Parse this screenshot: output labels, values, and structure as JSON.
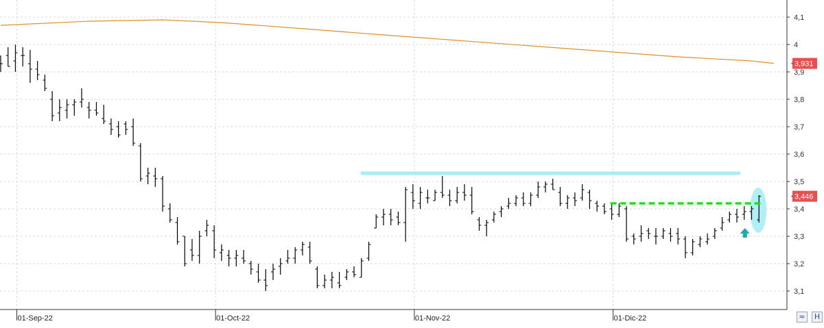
{
  "chart_data": {
    "type": "ohlc",
    "y_ticks": [
      "4,1",
      "4",
      "3,9",
      "3,8",
      "3,7",
      "3,6",
      "3,5",
      "3,4",
      "3,3",
      "3,2",
      "3,1"
    ],
    "y_tick_values": [
      4.1,
      4.0,
      3.9,
      3.8,
      3.7,
      3.6,
      3.5,
      3.4,
      3.3,
      3.2,
      3.1
    ],
    "ylim": [
      3.04,
      4.15
    ],
    "x_ticks": [
      "01-Sep-22",
      "01-Oct-22",
      "01-Nov-22",
      "01-Dic-22"
    ],
    "x_tick_bar_index": [
      2,
      29,
      56,
      83
    ],
    "bars": [
      [
        3.93,
        3.96,
        3.9,
        3.93
      ],
      [
        3.96,
        3.99,
        3.92,
        3.92
      ],
      [
        3.94,
        4.0,
        3.9,
        3.97
      ],
      [
        3.96,
        3.99,
        3.92,
        3.96
      ],
      [
        3.93,
        3.98,
        3.86,
        3.91
      ],
      [
        3.91,
        3.94,
        3.87,
        3.89
      ],
      [
        3.87,
        3.89,
        3.83,
        3.84
      ],
      [
        3.8,
        3.83,
        3.72,
        3.74
      ],
      [
        3.75,
        3.8,
        3.72,
        3.77
      ],
      [
        3.76,
        3.8,
        3.73,
        3.78
      ],
      [
        3.78,
        3.8,
        3.74,
        3.79
      ],
      [
        3.79,
        3.84,
        3.77,
        3.8
      ],
      [
        3.77,
        3.79,
        3.73,
        3.76
      ],
      [
        3.76,
        3.79,
        3.74,
        3.75
      ],
      [
        3.73,
        3.78,
        3.71,
        3.72
      ],
      [
        3.71,
        3.73,
        3.67,
        3.69
      ],
      [
        3.7,
        3.72,
        3.66,
        3.67
      ],
      [
        3.71,
        3.72,
        3.67,
        3.69
      ],
      [
        3.7,
        3.73,
        3.63,
        3.64
      ],
      [
        3.63,
        3.64,
        3.5,
        3.51
      ],
      [
        3.52,
        3.55,
        3.49,
        3.53
      ],
      [
        3.52,
        3.55,
        3.48,
        3.51
      ],
      [
        3.51,
        3.52,
        3.39,
        3.41
      ],
      [
        3.4,
        3.42,
        3.35,
        3.36
      ],
      [
        3.35,
        3.37,
        3.27,
        3.28
      ],
      [
        3.3,
        3.3,
        3.19,
        3.2
      ],
      [
        3.25,
        3.29,
        3.21,
        3.23
      ],
      [
        3.23,
        3.32,
        3.2,
        3.3
      ],
      [
        3.32,
        3.36,
        3.3,
        3.34
      ],
      [
        3.32,
        3.34,
        3.22,
        3.25
      ],
      [
        3.24,
        3.27,
        3.21,
        3.25
      ],
      [
        3.23,
        3.25,
        3.19,
        3.22
      ],
      [
        3.22,
        3.25,
        3.19,
        3.23
      ],
      [
        3.22,
        3.25,
        3.2,
        3.21
      ],
      [
        3.2,
        3.21,
        3.16,
        3.18
      ],
      [
        3.17,
        3.2,
        3.13,
        3.14
      ],
      [
        3.14,
        3.18,
        3.1,
        3.12
      ],
      [
        3.17,
        3.2,
        3.14,
        3.18
      ],
      [
        3.19,
        3.22,
        3.16,
        3.2
      ],
      [
        3.21,
        3.25,
        3.2,
        3.22
      ],
      [
        3.22,
        3.26,
        3.2,
        3.25
      ],
      [
        3.25,
        3.28,
        3.23,
        3.27
      ],
      [
        3.26,
        3.28,
        3.2,
        3.21
      ],
      [
        3.18,
        3.19,
        3.11,
        3.12
      ],
      [
        3.12,
        3.16,
        3.11,
        3.14
      ],
      [
        3.14,
        3.17,
        3.11,
        3.15
      ],
      [
        3.13,
        3.17,
        3.11,
        3.12
      ],
      [
        3.15,
        3.18,
        3.14,
        3.17
      ],
      [
        3.17,
        3.19,
        3.15,
        3.16
      ],
      [
        3.15,
        3.22,
        3.15,
        3.21
      ],
      [
        3.22,
        3.28,
        3.21,
        3.27
      ],
      [
        3.33,
        3.38,
        3.33,
        3.37
      ],
      [
        3.37,
        3.4,
        3.34,
        3.38
      ],
      [
        3.38,
        3.4,
        3.34,
        3.36
      ],
      [
        3.37,
        3.39,
        3.34,
        3.35
      ],
      [
        3.35,
        3.48,
        3.28,
        3.47
      ],
      [
        3.46,
        3.49,
        3.4,
        3.43
      ],
      [
        3.42,
        3.48,
        3.4,
        3.46
      ],
      [
        3.44,
        3.47,
        3.42,
        3.44
      ],
      [
        3.43,
        3.47,
        3.43,
        3.46
      ],
      [
        3.46,
        3.52,
        3.44,
        3.45
      ],
      [
        3.45,
        3.47,
        3.41,
        3.43
      ],
      [
        3.43,
        3.48,
        3.42,
        3.46
      ],
      [
        3.46,
        3.49,
        3.43,
        3.45
      ],
      [
        3.45,
        3.48,
        3.38,
        3.39
      ],
      [
        3.36,
        3.37,
        3.32,
        3.34
      ],
      [
        3.34,
        3.36,
        3.3,
        3.35
      ],
      [
        3.36,
        3.39,
        3.35,
        3.38
      ],
      [
        3.39,
        3.41,
        3.37,
        3.4
      ],
      [
        3.41,
        3.44,
        3.4,
        3.42
      ],
      [
        3.42,
        3.45,
        3.41,
        3.44
      ],
      [
        3.44,
        3.46,
        3.41,
        3.42
      ],
      [
        3.42,
        3.46,
        3.41,
        3.45
      ],
      [
        3.45,
        3.5,
        3.44,
        3.48
      ],
      [
        3.48,
        3.5,
        3.46,
        3.49
      ],
      [
        3.49,
        3.51,
        3.47,
        3.47
      ],
      [
        3.46,
        3.48,
        3.41,
        3.42
      ],
      [
        3.42,
        3.45,
        3.4,
        3.44
      ],
      [
        3.44,
        3.46,
        3.41,
        3.43
      ],
      [
        3.44,
        3.49,
        3.43,
        3.47
      ],
      [
        3.46,
        3.47,
        3.4,
        3.43
      ],
      [
        3.42,
        3.43,
        3.39,
        3.41
      ],
      [
        3.41,
        3.42,
        3.38,
        3.39
      ],
      [
        3.4,
        3.42,
        3.36,
        3.38
      ],
      [
        3.38,
        3.42,
        3.37,
        3.41
      ],
      [
        3.4,
        3.41,
        3.28,
        3.29
      ],
      [
        3.3,
        3.31,
        3.27,
        3.29
      ],
      [
        3.3,
        3.34,
        3.28,
        3.31
      ],
      [
        3.32,
        3.33,
        3.29,
        3.31
      ],
      [
        3.3,
        3.33,
        3.27,
        3.3
      ],
      [
        3.3,
        3.33,
        3.29,
        3.32
      ],
      [
        3.31,
        3.33,
        3.28,
        3.3
      ],
      [
        3.31,
        3.33,
        3.27,
        3.29
      ],
      [
        3.29,
        3.3,
        3.22,
        3.24
      ],
      [
        3.24,
        3.29,
        3.23,
        3.28
      ],
      [
        3.27,
        3.3,
        3.26,
        3.29
      ],
      [
        3.28,
        3.31,
        3.27,
        3.29
      ],
      [
        3.3,
        3.33,
        3.29,
        3.32
      ],
      [
        3.33,
        3.37,
        3.32,
        3.35
      ],
      [
        3.36,
        3.39,
        3.35,
        3.38
      ],
      [
        3.38,
        3.4,
        3.35,
        3.37
      ],
      [
        3.38,
        3.41,
        3.36,
        3.39
      ],
      [
        3.39,
        3.41,
        3.36,
        3.4
      ],
      [
        3.36,
        3.45,
        3.35,
        3.446
      ]
    ],
    "moving_average": {
      "color": "#e0902a",
      "points": [
        [
          0,
          4.07
        ],
        [
          12,
          4.085
        ],
        [
          22,
          4.09
        ],
        [
          30,
          4.08
        ],
        [
          40,
          4.06
        ],
        [
          52,
          4.035
        ],
        [
          62,
          4.015
        ],
        [
          72,
          3.995
        ],
        [
          82,
          3.975
        ],
        [
          92,
          3.955
        ],
        [
          102,
          3.94
        ],
        [
          105,
          3.931
        ]
      ]
    },
    "resistance_level": {
      "value": 3.53,
      "color": "#a8ecf4"
    },
    "breakout_level": {
      "value": 3.42,
      "color": "#22dd22"
    },
    "signal_arrow_color": "#22aaaa",
    "highlight_ellipse_color": "#a8ecf4",
    "price_badges": [
      {
        "label": "3,931",
        "value": 3.931,
        "color": "#e85050"
      },
      {
        "label": "3,446",
        "value": 3.446,
        "color": "#e85050"
      }
    ],
    "grid": true
  },
  "controls": {
    "scale_icon": "zoom-scale-icon",
    "save_icon": "h-toggle-icon"
  }
}
